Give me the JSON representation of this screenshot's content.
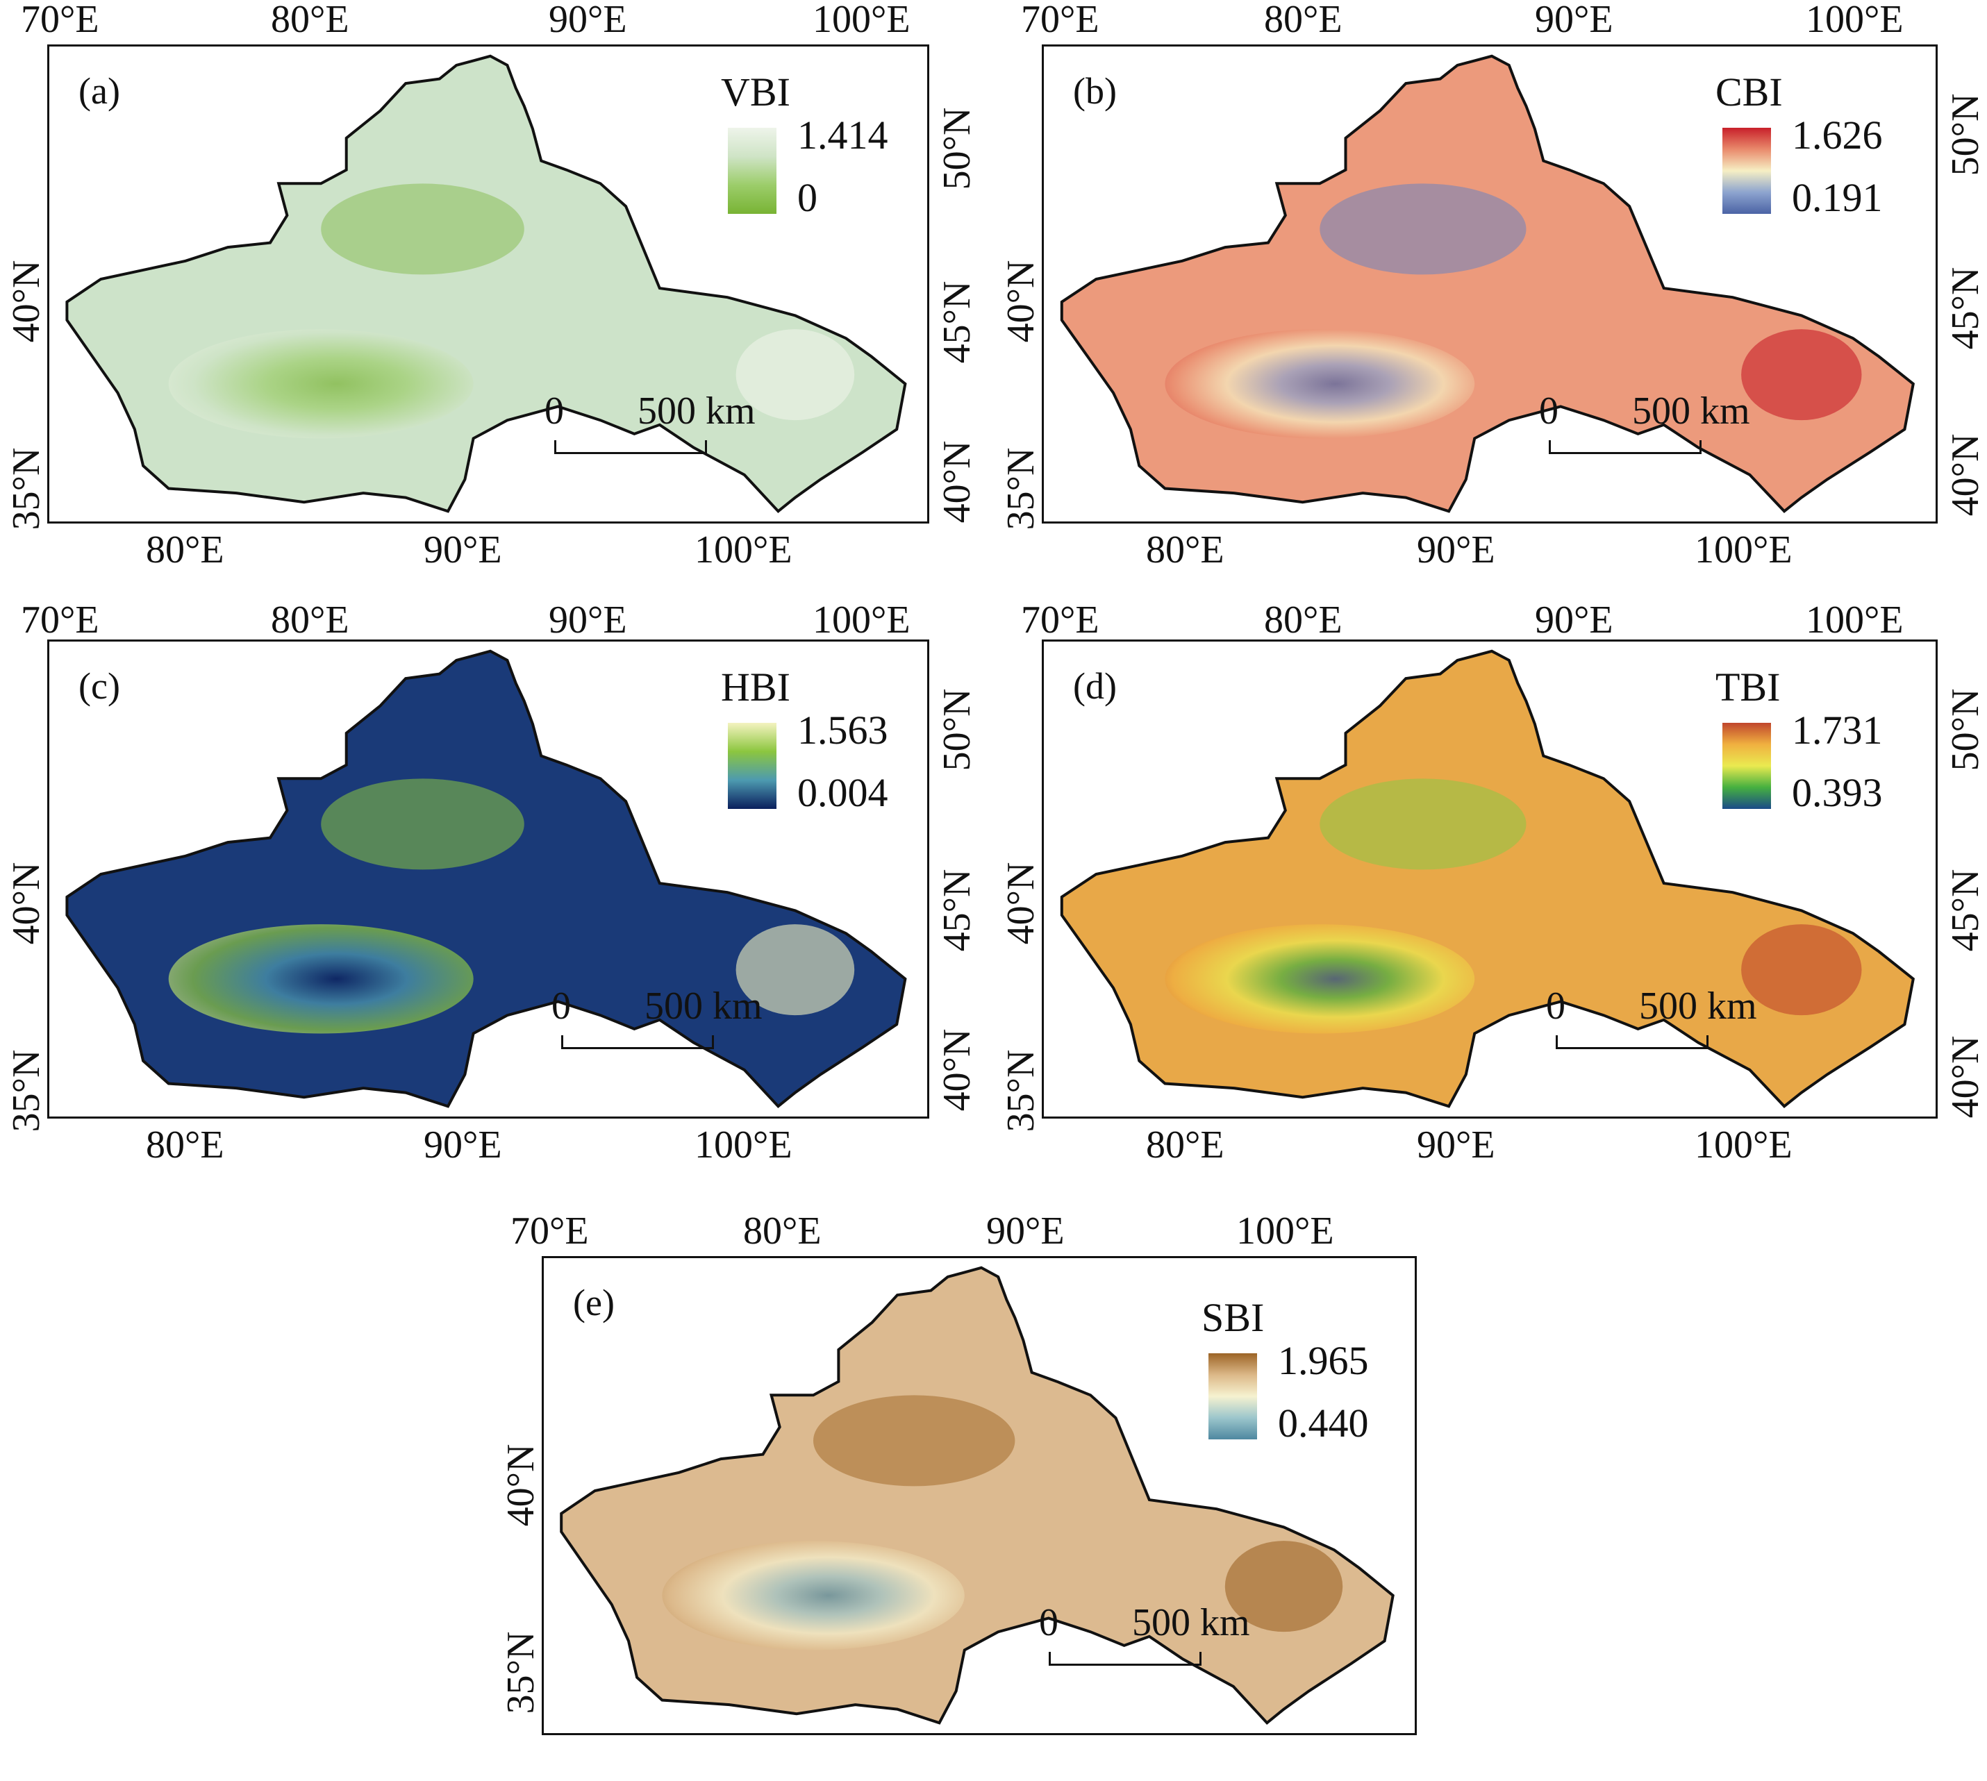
{
  "panels": [
    {
      "id": "a",
      "letter": "(a)",
      "index": "VBI",
      "max": "1.414",
      "min": "0",
      "colors": [
        "#eef4ea",
        "#cfe4c6",
        "#9ccd6a",
        "#78b334"
      ],
      "fill_main": "#cde3c9",
      "fill_accent": "#8cbf5a",
      "top_ticks": [
        "70°E",
        "80°E",
        "90°E",
        "100°E"
      ],
      "bottom_ticks": [
        "80°E",
        "90°E",
        "100°E"
      ],
      "left_ticks": [
        "40°N",
        "35°N"
      ],
      "right_ticks": [
        "50°N",
        "45°N",
        "40°N"
      ],
      "scale_zero": "0",
      "scale_label": "500 km"
    },
    {
      "id": "b",
      "letter": "(b)",
      "index": "CBI",
      "max": "1.626",
      "min": "0.191",
      "colors": [
        "#c8202a",
        "#e98a6c",
        "#f6efc4",
        "#8da4cf",
        "#4b63a5"
      ],
      "fill_main": "#ec9a7c",
      "fill_accent": "#6d84bd",
      "top_ticks": [
        "70°E",
        "80°E",
        "90°E",
        "100°E"
      ],
      "bottom_ticks": [
        "80°E",
        "90°E",
        "100°E"
      ],
      "left_ticks": [
        "40°N",
        "35°N"
      ],
      "right_ticks": [
        "50°N",
        "45°N",
        "40°N"
      ],
      "scale_zero": "0",
      "scale_label": "500 km"
    },
    {
      "id": "c",
      "letter": "(c)",
      "index": "HBI",
      "max": "1.563",
      "min": "0.004",
      "colors": [
        "#f4f3c0",
        "#8cc63f",
        "#4d9ab0",
        "#0a1f5c"
      ],
      "fill_main": "#1a3a78",
      "fill_accent": "#8cc63f",
      "top_ticks": [
        "70°E",
        "80°E",
        "90°E",
        "100°E"
      ],
      "bottom_ticks": [
        "80°E",
        "90°E",
        "100°E"
      ],
      "left_ticks": [
        "40°N",
        "35°N"
      ],
      "right_ticks": [
        "50°N",
        "45°N",
        "40°N"
      ],
      "scale_zero": "0",
      "scale_label": "500 km"
    },
    {
      "id": "d",
      "letter": "(d)",
      "index": "TBI",
      "max": "1.731",
      "min": "0.393",
      "colors": [
        "#c0462c",
        "#f0b040",
        "#eaea50",
        "#46b040",
        "#1a4a88"
      ],
      "fill_main": "#e8a848",
      "fill_accent": "#8cc646",
      "top_ticks": [
        "70°E",
        "80°E",
        "90°E",
        "100°E"
      ],
      "bottom_ticks": [
        "80°E",
        "90°E",
        "100°E"
      ],
      "left_ticks": [
        "40°N",
        "35°N"
      ],
      "right_ticks": [
        "50°N",
        "45°N",
        "40°N"
      ],
      "scale_zero": "0",
      "scale_label": "500 km"
    },
    {
      "id": "e",
      "letter": "(e)",
      "index": "SBI",
      "max": "1.965",
      "min": "0.440",
      "colors": [
        "#9c6426",
        "#dcb888",
        "#f6f2d0",
        "#9cc6cc",
        "#4e88a0"
      ],
      "fill_main": "#dcba90",
      "fill_accent": "#a46c2c",
      "top_ticks": [
        "70°E",
        "80°E",
        "90°E",
        "100°E"
      ],
      "bottom_ticks": [],
      "left_ticks": [
        "40°N",
        "35°N"
      ],
      "right_ticks": [],
      "scale_zero": "0",
      "scale_label": "500 km"
    }
  ]
}
